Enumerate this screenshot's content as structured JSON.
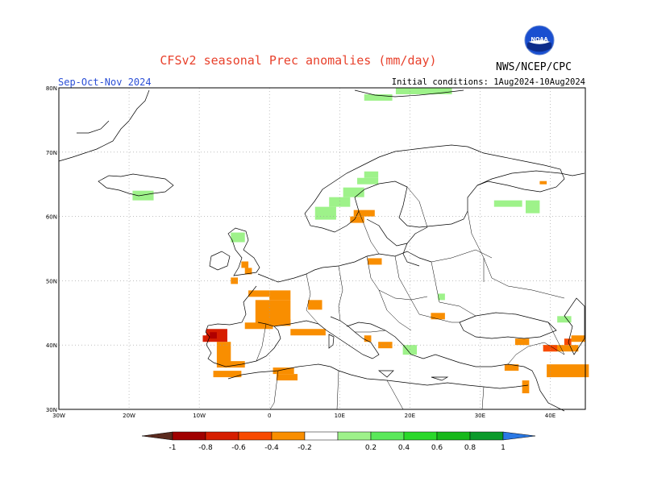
{
  "title": "CFSv2 seasonal Prec anomalies (mm/day)",
  "season": "Sep-Oct-Nov 2024",
  "initial_conditions": "Initial conditions: 1Aug2024-10Aug2024",
  "agency": "NWS/NCEP/CPC",
  "logo_text": "NOAA",
  "map": {
    "lon_range": [
      -30,
      45
    ],
    "lat_range": [
      30,
      80
    ],
    "grid": true,
    "lon_ticks": [
      "30W",
      "20W",
      "10W",
      "0",
      "10E",
      "20E",
      "30E",
      "40E"
    ],
    "lat_ticks": [
      "80N",
      "70N",
      "60N",
      "50N",
      "40N",
      "30N"
    ]
  },
  "legend": {
    "labels": [
      "-1",
      "-0.8",
      "-0.6",
      "-0.4",
      "-0.2",
      "0.2",
      "0.4",
      "0.6",
      "0.8",
      "1"
    ],
    "colors": [
      "#5a2a1e",
      "#a00000",
      "#d61e00",
      "#f84a00",
      "#f98e00",
      "#ffffff",
      "#9ef28a",
      "#5ae85a",
      "#2ad82a",
      "#17b81a",
      "#0a9a2a",
      "#2a78e4"
    ]
  },
  "anomaly_cells": [
    {
      "lon": -19.5,
      "lat": 64.0,
      "w": 3,
      "h": 1.5,
      "level": 0.4
    },
    {
      "lon": 13.5,
      "lat": 79.0,
      "w": 4,
      "h": 1,
      "level": 0.4
    },
    {
      "lon": 18.0,
      "lat": 80.0,
      "w": 8,
      "h": 1,
      "level": 0.4
    },
    {
      "lon": 6.5,
      "lat": 61.5,
      "w": 3,
      "h": 2,
      "level": 0.4
    },
    {
      "lon": 8.5,
      "lat": 63.0,
      "w": 3,
      "h": 1.5,
      "level": 0.4
    },
    {
      "lon": 10.5,
      "lat": 64.5,
      "w": 3,
      "h": 1.5,
      "level": 0.4
    },
    {
      "lon": 12.5,
      "lat": 66.0,
      "w": 3,
      "h": 1,
      "level": 0.4
    },
    {
      "lon": 13.5,
      "lat": 67.0,
      "w": 2,
      "h": 1,
      "level": 0.4
    },
    {
      "lon": 32.0,
      "lat": 62.5,
      "w": 4,
      "h": 1,
      "level": 0.4
    },
    {
      "lon": 36.5,
      "lat": 62.5,
      "w": 2,
      "h": 2,
      "level": 0.4
    },
    {
      "lon": -5.5,
      "lat": 57.5,
      "w": 2,
      "h": 1.5,
      "level": 0.4
    },
    {
      "lon": 19.0,
      "lat": 40.0,
      "w": 2,
      "h": 1.5,
      "level": 0.4
    },
    {
      "lon": 24.0,
      "lat": 48.0,
      "w": 1,
      "h": 1,
      "level": 0.4
    },
    {
      "lon": 41.0,
      "lat": 44.5,
      "w": 2,
      "h": 1,
      "level": 0.4
    },
    {
      "lon": 12.0,
      "lat": 61.0,
      "w": 3,
      "h": 1,
      "level": -0.2
    },
    {
      "lon": 11.5,
      "lat": 60.0,
      "w": 2,
      "h": 1,
      "level": -0.2
    },
    {
      "lon": 14.0,
      "lat": 53.5,
      "w": 2,
      "h": 1,
      "level": -0.2
    },
    {
      "lon": -4.0,
      "lat": 53.0,
      "w": 1,
      "h": 1,
      "level": -0.2
    },
    {
      "lon": -3.5,
      "lat": 52.0,
      "w": 1,
      "h": 1,
      "level": -0.2
    },
    {
      "lon": -5.5,
      "lat": 50.5,
      "w": 1,
      "h": 1,
      "level": -0.2
    },
    {
      "lon": -3.0,
      "lat": 48.5,
      "w": 3,
      "h": 1,
      "level": -0.2
    },
    {
      "lon": -2.0,
      "lat": 47.0,
      "w": 5,
      "h": 4,
      "level": -0.2
    },
    {
      "lon": 0.0,
      "lat": 48.5,
      "w": 3,
      "h": 1.5,
      "level": -0.2
    },
    {
      "lon": 0.0,
      "lat": 44.0,
      "w": 3,
      "h": 1,
      "level": -0.2
    },
    {
      "lon": 3.0,
      "lat": 42.5,
      "w": 5,
      "h": 1,
      "level": -0.2
    },
    {
      "lon": 5.5,
      "lat": 47.0,
      "w": 2,
      "h": 1.5,
      "level": -0.2
    },
    {
      "lon": -3.5,
      "lat": 43.5,
      "w": 4,
      "h": 1,
      "level": -0.2
    },
    {
      "lon": -7.5,
      "lat": 40.5,
      "w": 2,
      "h": 4,
      "level": -0.2
    },
    {
      "lon": -6.5,
      "lat": 37.5,
      "w": 3,
      "h": 1,
      "level": -0.2
    },
    {
      "lon": -8.0,
      "lat": 36.0,
      "w": 4,
      "h": 1,
      "level": -0.2
    },
    {
      "lon": 0.5,
      "lat": 36.5,
      "w": 3,
      "h": 1,
      "level": -0.2
    },
    {
      "lon": 1.0,
      "lat": 35.5,
      "w": 3,
      "h": 1,
      "level": -0.2
    },
    {
      "lon": 13.5,
      "lat": 41.5,
      "w": 1,
      "h": 1,
      "level": -0.2
    },
    {
      "lon": 15.5,
      "lat": 40.5,
      "w": 2,
      "h": 1,
      "level": -0.2
    },
    {
      "lon": 23.0,
      "lat": 45.0,
      "w": 2,
      "h": 1,
      "level": -0.2
    },
    {
      "lon": 35.0,
      "lat": 41.0,
      "w": 2,
      "h": 1,
      "level": -0.2
    },
    {
      "lon": 39.0,
      "lat": 40.0,
      "w": 5,
      "h": 1,
      "level": -0.2
    },
    {
      "lon": 43.0,
      "lat": 41.5,
      "w": 2,
      "h": 1,
      "level": -0.2
    },
    {
      "lon": 36.0,
      "lat": 34.5,
      "w": 1,
      "h": 2,
      "level": -0.2
    },
    {
      "lon": 39.5,
      "lat": 37.0,
      "w": 6,
      "h": 2,
      "level": -0.2
    },
    {
      "lon": 33.5,
      "lat": 37.0,
      "w": 2,
      "h": 1,
      "level": -0.2
    },
    {
      "lon": 38.5,
      "lat": 65.5,
      "w": 1,
      "h": 0.5,
      "level": -0.2
    },
    {
      "lon": -9.0,
      "lat": 42.5,
      "w": 3,
      "h": 2,
      "level": -0.6
    },
    {
      "lon": -9.5,
      "lat": 41.5,
      "w": 1,
      "h": 1,
      "level": -0.6
    },
    {
      "lon": 39.0,
      "lat": 40.0,
      "w": 2,
      "h": 1,
      "level": -0.4
    },
    {
      "lon": 42.0,
      "lat": 41.0,
      "w": 1,
      "h": 1,
      "level": -0.4
    },
    {
      "lon": -8.5,
      "lat": 42.0,
      "w": 1,
      "h": 1,
      "level": -1
    }
  ]
}
